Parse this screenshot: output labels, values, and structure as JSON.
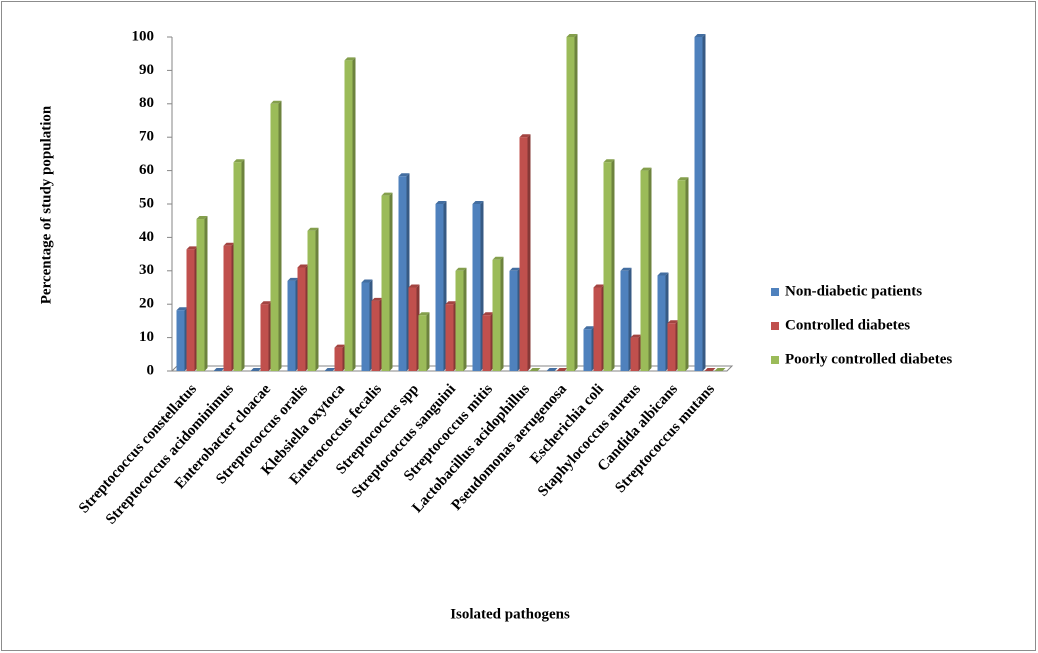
{
  "chart_data": {
    "type": "bar",
    "y_label": "Percentage of study population",
    "x_label": "Isolated pathogens",
    "categories": [
      "Streptococcus constellatus",
      "Streptococcus acidominimus",
      "Enterobacter cloacae",
      "Streptococcus oralis",
      "Klebsiella oxytoca",
      "Enterococcus fecalis",
      "Streptococcus spp",
      "Streptococcus sanguini",
      "Streptococcus mitis",
      "Lactobacillus acidophillus",
      "Pseudomonas aerugenosa",
      "Escherichia coli",
      "Staphylococcus aureus",
      "Candida albicans",
      "Streptococcus mutans"
    ],
    "series": [
      {
        "name": "Non-diabetic patients",
        "color": "#4f81bd",
        "values": [
          18.2,
          0,
          0,
          27,
          0,
          26.5,
          58.3,
          50,
          50,
          30,
          0,
          12.5,
          30,
          28.6,
          100
        ]
      },
      {
        "name": "Controlled diabetes",
        "color": "#c0504d",
        "values": [
          36.4,
          37.5,
          20,
          31,
          7,
          21,
          25,
          20,
          16.7,
          70,
          0,
          25,
          10,
          14.3,
          0
        ]
      },
      {
        "name": "Poorly controlled diabetes",
        "color": "#9bbb59",
        "values": [
          45.5,
          62.5,
          80,
          42,
          93,
          52.5,
          16.7,
          30,
          33.3,
          0,
          100,
          62.5,
          60,
          57.1,
          0
        ]
      }
    ],
    "ylim": [
      0,
      100
    ],
    "yticks": [
      0,
      10,
      20,
      30,
      40,
      50,
      60,
      70,
      80,
      90,
      100
    ],
    "legend": "right"
  }
}
